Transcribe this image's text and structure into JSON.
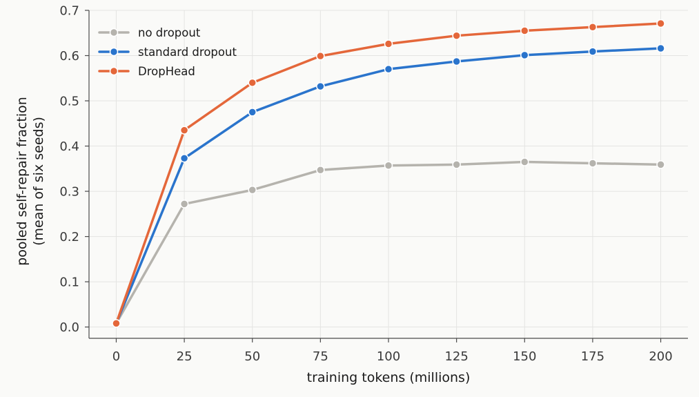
{
  "chart_data": {
    "type": "line",
    "title": "",
    "xlabel": "training tokens (millions)",
    "ylabel": "pooled self-repair fraction",
    "ylabel_sub": "(mean of six seeds)",
    "x": [
      0,
      25,
      50,
      75,
      100,
      125,
      150,
      175,
      200
    ],
    "xlim": [
      -10,
      210
    ],
    "ylim": [
      -0.025,
      0.7
    ],
    "x_ticks": [
      0,
      25,
      50,
      75,
      100,
      125,
      150,
      175,
      200
    ],
    "y_ticks": [
      0.0,
      0.1,
      0.2,
      0.3,
      0.4,
      0.5,
      0.6,
      0.7
    ],
    "y_tick_labels": [
      "0.0",
      "0.1",
      "0.2",
      "0.3",
      "0.4",
      "0.5",
      "0.6",
      "0.7"
    ],
    "grid": true,
    "legend_position": "top-left",
    "series": [
      {
        "name": "no dropout",
        "color": "#b5b3ad",
        "values": [
          0.008,
          0.272,
          0.303,
          0.347,
          0.357,
          0.359,
          0.365,
          0.362,
          0.359
        ]
      },
      {
        "name": "standard dropout",
        "color": "#2a74cc",
        "values": [
          0.008,
          0.373,
          0.475,
          0.532,
          0.57,
          0.587,
          0.601,
          0.609,
          0.616
        ]
      },
      {
        "name": "DropHead",
        "color": "#e4673a",
        "values": [
          0.008,
          0.435,
          0.54,
          0.599,
          0.626,
          0.644,
          0.655,
          0.663,
          0.671
        ]
      }
    ]
  }
}
